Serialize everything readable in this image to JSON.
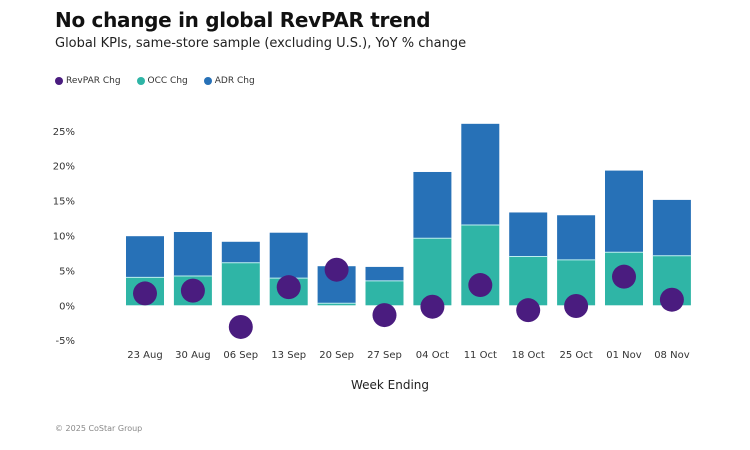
{
  "chart_data": {
    "type": "bar",
    "title": "No change in global RevPAR trend",
    "subtitle": "Global KPIs, same-store sample (excluding U.S.), YoY % change",
    "xlabel": "Week Ending",
    "ylabel": "",
    "ylim": [
      -5,
      25
    ],
    "yticks": [
      "-5%",
      "0%",
      "5%",
      "10%",
      "15%",
      "20%",
      "25%"
    ],
    "ytick_values": [
      -5,
      0,
      5,
      10,
      15,
      20,
      25
    ],
    "grid": false,
    "legend_position": "top-left",
    "categories": [
      "23 Aug",
      "30 Aug",
      "06 Sep",
      "13 Sep",
      "20 Sep",
      "27 Sep",
      "04 Oct",
      "11 Oct",
      "18 Oct",
      "25 Oct",
      "01 Nov",
      "08 Nov"
    ],
    "series": [
      {
        "name": "RevPAR Chg",
        "kind": "dot",
        "color": "#4a1c7f",
        "values": [
          1.7,
          2.1,
          -3.1,
          2.6,
          5.1,
          -1.4,
          -0.2,
          2.9,
          -0.7,
          -0.1,
          4.1,
          0.8
        ]
      },
      {
        "name": "OCC Chg",
        "kind": "stacked-bar",
        "color": "#2fb5a6",
        "values": [
          4.0,
          4.2,
          6.1,
          3.9,
          0.3,
          3.5,
          9.6,
          11.5,
          7.0,
          6.5,
          7.6,
          7.1
        ]
      },
      {
        "name": "ADR Chg",
        "kind": "stacked-bar",
        "color": "#2771b7",
        "values": [
          5.9,
          6.3,
          3.0,
          6.5,
          5.3,
          2.0,
          9.5,
          14.5,
          6.3,
          6.4,
          11.7,
          8.0
        ]
      }
    ]
  },
  "legend": [
    {
      "label": "RevPAR Chg",
      "color": "#4a1c7f"
    },
    {
      "label": "OCC Chg",
      "color": "#2fb5a6"
    },
    {
      "label": "ADR Chg",
      "color": "#2771b7"
    }
  ],
  "footer": "© 2025 CoStar Group"
}
